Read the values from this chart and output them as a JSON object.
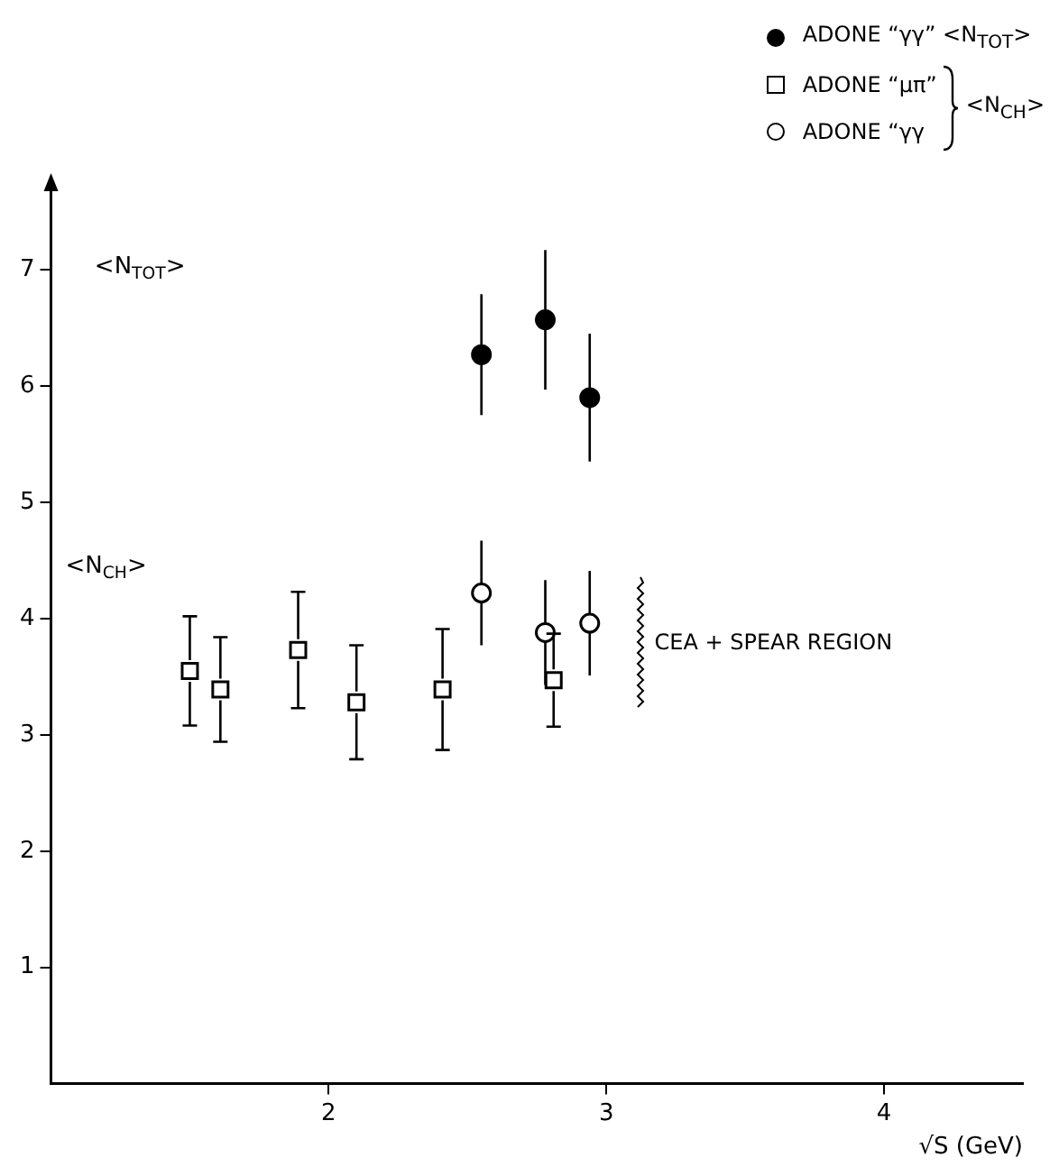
{
  "chart_data": {
    "type": "scatter",
    "xlabel": "√S (GeV)",
    "legend_title": "<N$_{CH}$>",
    "xlim": [
      1,
      4.5
    ],
    "xticks": [
      2,
      3,
      4
    ],
    "ylim": [
      0,
      7.8
    ],
    "yticks": [
      1,
      2,
      3,
      4,
      5,
      6,
      7
    ],
    "grid": false,
    "legend": "top right",
    "series": [
      {
        "name": "ADONE “γγ” <N$_{TOT}$>",
        "color": "#000000",
        "marker": "circle",
        "x": [
          2.55,
          2.78,
          2.94
        ],
        "values": [
          6.27,
          6.57,
          5.9
        ],
        "errors": [
          0.52,
          0.6,
          0.55
        ]
      },
      {
        "name": "ADONE “μπ”",
        "color": "#ffffff",
        "marker": "square",
        "x": [
          1.5,
          1.61,
          1.89,
          2.1,
          2.41,
          2.81
        ],
        "values": [
          3.55,
          3.39,
          3.73,
          3.28,
          3.39,
          3.47
        ],
        "errors": [
          0.47,
          0.45,
          0.5,
          0.49,
          0.52,
          0.4
        ]
      },
      {
        "name": "ADONE “γγ",
        "color": "#ffffff",
        "marker": "circle",
        "x": [
          2.55,
          2.78,
          2.94
        ],
        "values": [
          4.22,
          3.88,
          3.96
        ],
        "errors": [
          0.45,
          0.45,
          0.45
        ]
      }
    ],
    "annotations": [
      "<N$_{TOT}$>",
      "<N$_{CH}$>",
      "CEA + SPEAR REGION"
    ]
  }
}
